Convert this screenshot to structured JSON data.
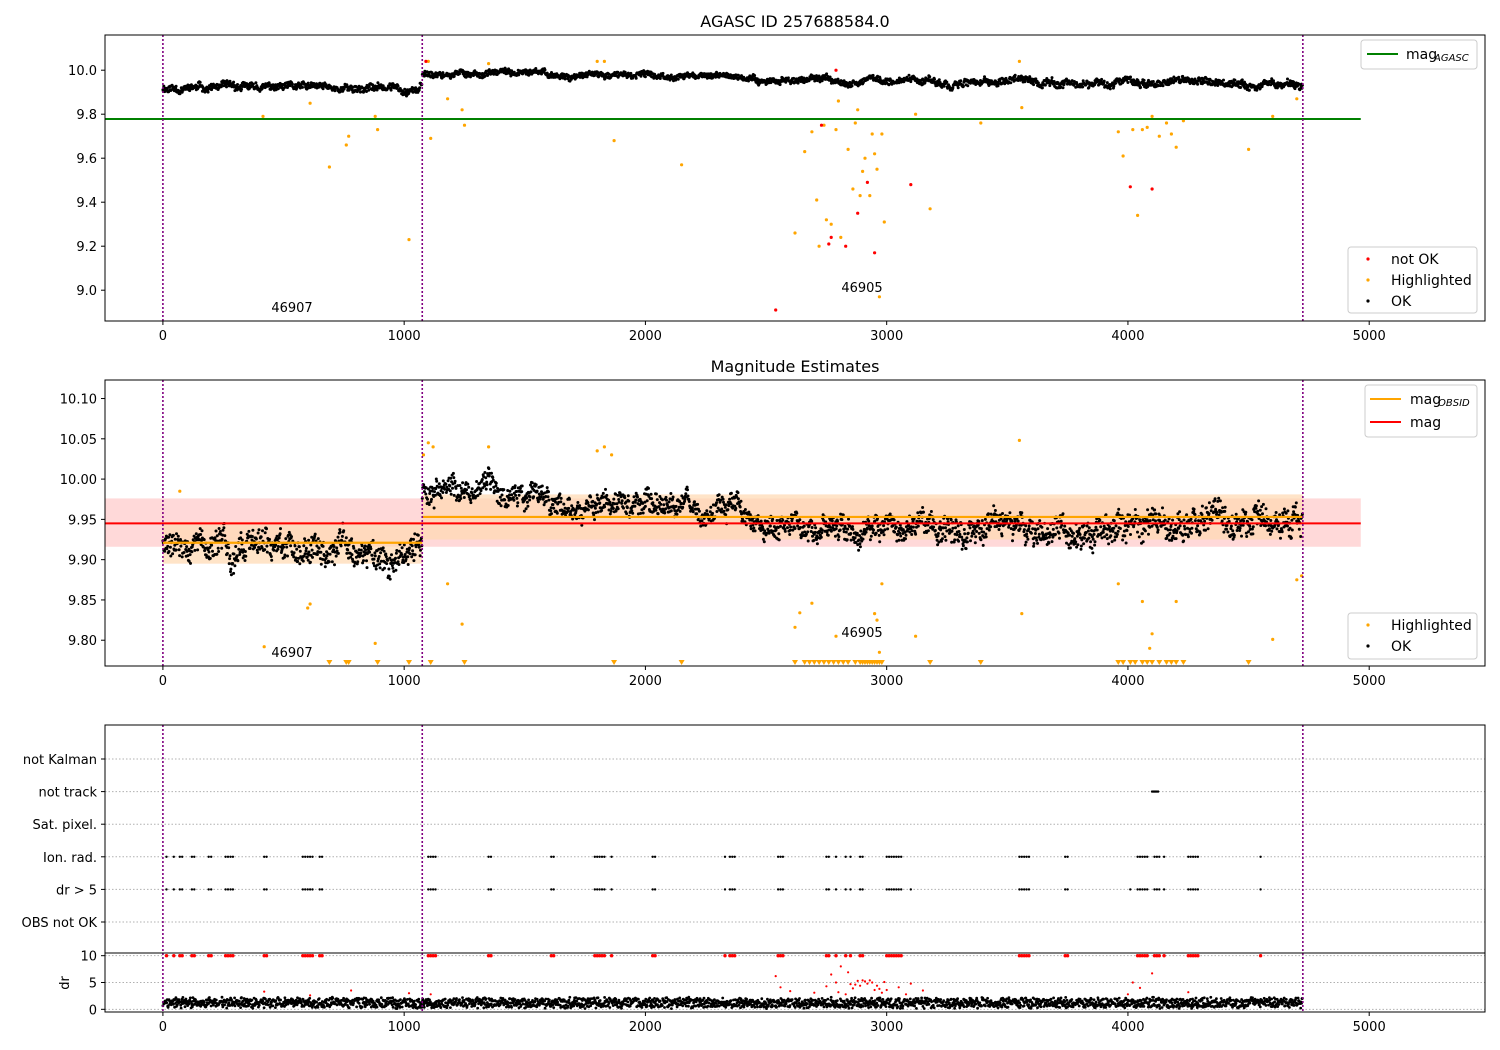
{
  "figure": {
    "title": "AGASC ID 257688584.0",
    "colors": {
      "ok": "#000000",
      "highlighted": "#ffa500",
      "not_ok": "#ff0000",
      "mag_agasc": "#008000",
      "mag_obsid": "#ffa500",
      "mag": "#ff0000",
      "obs_boundary": "#800080",
      "grid": "#b0b0b0",
      "band_mag": "#ffcccc",
      "band_obsid": "#ffd8b0"
    }
  },
  "chart_data": [
    {
      "type": "scatter",
      "title": "AGASC ID 257688584.0",
      "xlim": [
        -240,
        5480
      ],
      "ylim": [
        8.86,
        10.16
      ],
      "x_ticks": [
        0,
        1000,
        2000,
        3000,
        4000,
        5000
      ],
      "y_ticks": [
        9.0,
        9.2,
        9.4,
        9.6,
        9.8,
        10.0
      ],
      "obs_boundaries": [
        0,
        1075,
        4725
      ],
      "annotations": [
        {
          "text": "46907",
          "x": 450,
          "y": 8.9
        },
        {
          "text": "46905",
          "x": 2890,
          "y": 9.0
        }
      ],
      "hlines": [
        {
          "name": "mag_AGASC",
          "y": 9.778,
          "x": [
            -240,
            4965
          ]
        }
      ],
      "legend_location": "upper right and lower right",
      "legend_lines": [
        {
          "label": "mag",
          "subscript": "AGASC",
          "color": "#008000"
        }
      ],
      "legend_points": [
        {
          "label": "not OK",
          "color": "#ff0000"
        },
        {
          "label": "Highlighted",
          "color": "#ffa500"
        },
        {
          "label": "OK",
          "color": "#000000"
        }
      ],
      "segments": [
        {
          "x": [
            0,
            1075
          ],
          "mean": 9.92,
          "amp": 0.03
        },
        {
          "x": [
            1075,
            1600
          ],
          "mean": 9.985,
          "amp": 0.025
        },
        {
          "x": [
            1600,
            2400
          ],
          "mean": 9.975,
          "amp": 0.025
        },
        {
          "x": [
            2400,
            3200
          ],
          "mean": 9.955,
          "amp": 0.025
        },
        {
          "x": [
            3200,
            4725
          ],
          "mean": 9.945,
          "amp": 0.03
        }
      ],
      "highlighted_points": [
        [
          415,
          9.79
        ],
        [
          610,
          9.85
        ],
        [
          690,
          9.56
        ],
        [
          760,
          9.66
        ],
        [
          770,
          9.7
        ],
        [
          880,
          9.79
        ],
        [
          890,
          9.73
        ],
        [
          1020,
          9.23
        ],
        [
          1110,
          9.69
        ],
        [
          1180,
          9.87
        ],
        [
          1240,
          9.82
        ],
        [
          1250,
          9.75
        ],
        [
          1870,
          9.68
        ],
        [
          2150,
          9.57
        ],
        [
          2620,
          9.26
        ],
        [
          2660,
          9.63
        ],
        [
          2690,
          9.72
        ],
        [
          2710,
          9.41
        ],
        [
          2720,
          9.2
        ],
        [
          2740,
          9.75
        ],
        [
          2750,
          9.32
        ],
        [
          2770,
          9.3
        ],
        [
          2790,
          9.73
        ],
        [
          2800,
          9.86
        ],
        [
          2810,
          9.24
        ],
        [
          2840,
          9.64
        ],
        [
          2860,
          9.46
        ],
        [
          2870,
          9.76
        ],
        [
          2880,
          9.82
        ],
        [
          2890,
          9.43
        ],
        [
          2900,
          9.54
        ],
        [
          2910,
          9.6
        ],
        [
          2930,
          9.43
        ],
        [
          2940,
          9.71
        ],
        [
          2950,
          9.62
        ],
        [
          2960,
          9.55
        ],
        [
          2970,
          8.97
        ],
        [
          2980,
          9.71
        ],
        [
          2990,
          9.31
        ],
        [
          3120,
          9.8
        ],
        [
          3180,
          9.37
        ],
        [
          3390,
          9.76
        ],
        [
          3550,
          10.04
        ],
        [
          3560,
          9.83
        ],
        [
          3960,
          9.72
        ],
        [
          3980,
          9.61
        ],
        [
          4020,
          9.73
        ],
        [
          4040,
          9.34
        ],
        [
          4060,
          9.73
        ],
        [
          4080,
          9.74
        ],
        [
          4100,
          9.79
        ],
        [
          4130,
          9.7
        ],
        [
          4160,
          9.76
        ],
        [
          4180,
          9.71
        ],
        [
          4200,
          9.65
        ],
        [
          4230,
          9.77
        ],
        [
          4500,
          9.64
        ],
        [
          4600,
          9.79
        ],
        [
          4700,
          9.87
        ],
        [
          1100,
          10.04
        ],
        [
          1350,
          10.03
        ],
        [
          1800,
          10.04
        ],
        [
          1830,
          10.04
        ]
      ],
      "not_ok_points": [
        [
          2540,
          8.91
        ],
        [
          2730,
          9.75
        ],
        [
          2760,
          9.21
        ],
        [
          2770,
          9.24
        ],
        [
          2790,
          10.0
        ],
        [
          2830,
          9.2
        ],
        [
          2880,
          9.35
        ],
        [
          2920,
          9.49
        ],
        [
          2950,
          9.17
        ],
        [
          3100,
          9.48
        ],
        [
          4010,
          9.47
        ],
        [
          4100,
          9.46
        ],
        [
          1090,
          10.04
        ]
      ]
    },
    {
      "type": "scatter",
      "title": "Magnitude Estimates",
      "xlim": [
        -240,
        5480
      ],
      "ylim": [
        9.768,
        10.123
      ],
      "x_ticks": [
        0,
        1000,
        2000,
        3000,
        4000,
        5000
      ],
      "y_ticks": [
        9.8,
        9.85,
        9.9,
        9.95,
        10.0,
        10.05,
        10.1
      ],
      "y_tick_labels": [
        "9.80",
        "9.85",
        "9.90",
        "9.95",
        "10.00",
        "10.05",
        "10.10"
      ],
      "obs_boundaries": [
        0,
        1075,
        4725
      ],
      "annotations": [
        {
          "text": "46907",
          "x": 450,
          "y": 9.78
        },
        {
          "text": "46905",
          "x": 2890,
          "y": 9.805
        }
      ],
      "mag": {
        "value": 9.945,
        "band": [
          9.916,
          9.976
        ],
        "x": [
          -240,
          4965
        ]
      },
      "mag_obsid": [
        {
          "x": [
            0,
            1075
          ],
          "value": 9.921,
          "band": [
            9.895,
            9.947
          ]
        },
        {
          "x": [
            1075,
            4725
          ],
          "value": 9.953,
          "band": [
            9.925,
            9.981
          ]
        }
      ],
      "legend_location": "upper right and lower right",
      "legend_lines": [
        {
          "label": "mag",
          "subscript": "OBSID",
          "color": "#ffa500"
        },
        {
          "label": "mag",
          "subscript": "",
          "color": "#ff0000"
        }
      ],
      "legend_points": [
        {
          "label": "Highlighted",
          "color": "#ffa500"
        },
        {
          "label": "OK",
          "color": "#000000"
        }
      ],
      "segments": [
        {
          "x": [
            0,
            1075
          ],
          "mean": 9.915,
          "amp": 0.03
        },
        {
          "x": [
            1075,
            1600
          ],
          "mean": 9.985,
          "amp": 0.025
        },
        {
          "x": [
            1600,
            2400
          ],
          "mean": 9.965,
          "amp": 0.025
        },
        {
          "x": [
            2400,
            3200
          ],
          "mean": 9.945,
          "amp": 0.025
        },
        {
          "x": [
            3200,
            4725
          ],
          "mean": 9.94,
          "amp": 0.03
        }
      ],
      "highlighted_points": [
        [
          70,
          9.985
        ],
        [
          600,
          9.84
        ],
        [
          610,
          9.845
        ],
        [
          420,
          9.792
        ],
        [
          880,
          9.796
        ],
        [
          1180,
          9.87
        ],
        [
          1240,
          9.82
        ],
        [
          1100,
          10.045
        ],
        [
          1120,
          10.04
        ],
        [
          1350,
          10.04
        ],
        [
          1800,
          10.035
        ],
        [
          1830,
          10.04
        ],
        [
          1860,
          10.03
        ],
        [
          2620,
          9.816
        ],
        [
          2640,
          9.834
        ],
        [
          2690,
          9.846
        ],
        [
          2790,
          9.805
        ],
        [
          2950,
          9.833
        ],
        [
          2960,
          9.825
        ],
        [
          2980,
          9.87
        ],
        [
          3120,
          9.805
        ],
        [
          3550,
          10.048
        ],
        [
          3560,
          9.833
        ],
        [
          3960,
          9.87
        ],
        [
          4060,
          9.848
        ],
        [
          4100,
          9.808
        ],
        [
          4090,
          9.79
        ],
        [
          4200,
          9.848
        ],
        [
          4600,
          9.801
        ],
        [
          4700,
          9.875
        ],
        [
          4720,
          9.88
        ],
        [
          1080,
          10.03
        ],
        [
          2970,
          9.785
        ]
      ],
      "clipped_markers_x": [
        690,
        760,
        770,
        890,
        1020,
        1110,
        1250,
        1870,
        2150,
        2620,
        2660,
        2680,
        2700,
        2720,
        2740,
        2760,
        2780,
        2800,
        2820,
        2840,
        2870,
        2890,
        2900,
        2910,
        2920,
        2930,
        2940,
        2950,
        2960,
        2970,
        2980,
        3180,
        3390,
        3960,
        3980,
        4010,
        4030,
        4060,
        4080,
        4100,
        4130,
        4160,
        4180,
        4200,
        4230,
        4500
      ]
    },
    {
      "type": "scatter",
      "title": "",
      "xlim": [
        -240,
        5480
      ],
      "x_ticks": [
        0,
        1000,
        2000,
        3000,
        4000,
        5000
      ],
      "obs_boundaries": [
        0,
        1075,
        4725
      ],
      "flag_categories": [
        "not Kalman",
        "not track",
        "Sat. pixel.",
        "Ion. rad.",
        "dr > 5",
        "OBS not OK"
      ],
      "flag_events": {
        "not Kalman": [],
        "not track": [
          4100,
          4105,
          4110,
          4115,
          4120,
          4125
        ],
        "Sat. pixel.": [],
        "Ion. rad.": [
          15,
          45,
          70,
          80,
          120,
          130,
          190,
          200,
          260,
          270,
          280,
          290,
          420,
          430,
          580,
          590,
          600,
          610,
          620,
          650,
          660,
          1100,
          1110,
          1120,
          1130,
          1350,
          1360,
          1610,
          1620,
          1790,
          1800,
          1810,
          1820,
          1830,
          1860,
          2030,
          2040,
          2330,
          2350,
          2360,
          2370,
          2550,
          2560,
          2570,
          2750,
          2760,
          2790,
          2830,
          2850,
          2890,
          2900,
          3000,
          3010,
          3020,
          3030,
          3040,
          3050,
          3060,
          3550,
          3560,
          3570,
          3580,
          3590,
          3740,
          3750,
          4040,
          4050,
          4060,
          4070,
          4080,
          4110,
          4120,
          4130,
          4150,
          4250,
          4260,
          4270,
          4280,
          4290,
          4550
        ],
        "dr > 5": [
          15,
          45,
          70,
          80,
          120,
          130,
          190,
          200,
          260,
          270,
          280,
          290,
          420,
          430,
          580,
          590,
          600,
          610,
          620,
          650,
          660,
          1100,
          1110,
          1120,
          1130,
          1350,
          1360,
          1610,
          1620,
          1790,
          1800,
          1810,
          1820,
          1830,
          1860,
          2030,
          2040,
          2330,
          2350,
          2360,
          2370,
          2550,
          2560,
          2570,
          2750,
          2760,
          2790,
          2830,
          2850,
          2890,
          2900,
          3000,
          3010,
          3020,
          3030,
          3040,
          3050,
          3060,
          3100,
          3550,
          3560,
          3570,
          3580,
          3590,
          3740,
          3750,
          4010,
          4040,
          4050,
          4060,
          4070,
          4080,
          4110,
          4120,
          4130,
          4150,
          4250,
          4260,
          4270,
          4280,
          4290,
          4550
        ],
        "OBS not OK": []
      },
      "dr": {
        "ylabel": "dr",
        "ylim": [
          -0.5,
          10.5
        ],
        "y_ticks": [
          0,
          5,
          10
        ],
        "baseline_mean": 1.2,
        "clip_value": 10,
        "clipped_x": [
          15,
          45,
          70,
          80,
          120,
          130,
          190,
          200,
          260,
          270,
          280,
          290,
          420,
          430,
          580,
          590,
          600,
          610,
          620,
          650,
          660,
          1100,
          1110,
          1120,
          1130,
          1350,
          1360,
          1610,
          1620,
          1790,
          1800,
          1810,
          1820,
          1830,
          1860,
          2030,
          2040,
          2330,
          2350,
          2360,
          2370,
          2550,
          2560,
          2570,
          2750,
          2760,
          2790,
          2830,
          2850,
          2890,
          2900,
          3000,
          3010,
          3020,
          3030,
          3040,
          3050,
          3060,
          3550,
          3560,
          3570,
          3580,
          3590,
          3740,
          3750,
          4040,
          4050,
          4060,
          4070,
          4080,
          4110,
          4120,
          4130,
          4150,
          4250,
          4260,
          4270,
          4280,
          4290,
          4550
        ],
        "red_points": [
          [
            2540,
            6.2
          ],
          [
            2560,
            4.1
          ],
          [
            2600,
            3.4
          ],
          [
            2700,
            3.1
          ],
          [
            2750,
            4.3
          ],
          [
            2770,
            6.5
          ],
          [
            2790,
            5.0
          ],
          [
            2800,
            3.2
          ],
          [
            2810,
            8.0
          ],
          [
            2830,
            2.8
          ],
          [
            2840,
            6.9
          ],
          [
            2850,
            4.7
          ],
          [
            2860,
            3.9
          ],
          [
            2870,
            4.6
          ],
          [
            2880,
            5.3
          ],
          [
            2890,
            4.4
          ],
          [
            2900,
            5.4
          ],
          [
            2910,
            5.2
          ],
          [
            2920,
            4.8
          ],
          [
            2930,
            5.4
          ],
          [
            2940,
            5.0
          ],
          [
            2950,
            3.6
          ],
          [
            2960,
            4.4
          ],
          [
            2970,
            3.8
          ],
          [
            2980,
            3.1
          ],
          [
            2990,
            5.1
          ],
          [
            3000,
            3.6
          ],
          [
            3050,
            4.1
          ],
          [
            3080,
            2.8
          ],
          [
            3100,
            4.8
          ],
          [
            3150,
            3.5
          ],
          [
            4000,
            2.8
          ],
          [
            4020,
            5.0
          ],
          [
            4050,
            4.0
          ],
          [
            4100,
            6.7
          ],
          [
            4250,
            3.2
          ],
          [
            420,
            3.3
          ],
          [
            610,
            2.6
          ],
          [
            780,
            3.5
          ],
          [
            1020,
            3.0
          ],
          [
            1110,
            2.8
          ]
        ]
      }
    }
  ]
}
